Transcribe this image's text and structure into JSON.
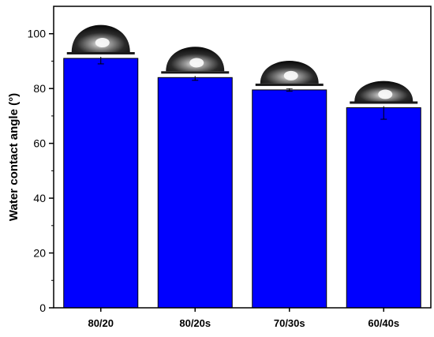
{
  "chart_data": {
    "type": "bar",
    "title": "",
    "xlabel": "",
    "ylabel": "Water contact angle (°)",
    "categories": [
      "80/20",
      "80/20s",
      "70/30s",
      "60/40s"
    ],
    "values": [
      91.0,
      84.0,
      79.5,
      73.0
    ],
    "errors": [
      2.0,
      1.0,
      0.5,
      4.2
    ],
    "ylim": [
      0,
      110
    ],
    "yticks": [
      0,
      20,
      40,
      60,
      80,
      100
    ],
    "bar_color": "#0000FF",
    "bar_edge_color": "#000000",
    "grid": false,
    "inset_images": [
      "water-droplet-image",
      "water-droplet-image",
      "water-droplet-image",
      "water-droplet-image"
    ]
  }
}
